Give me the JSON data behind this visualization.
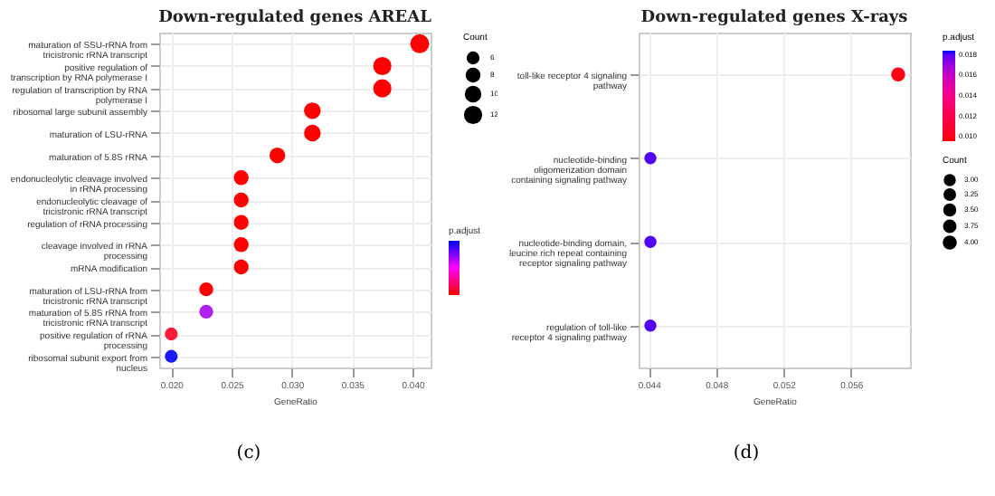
{
  "chart_data": [
    {
      "type": "scatter",
      "title": "Down-regulated genes AREAL",
      "xlabel": "GeneRatio",
      "legend_title": "Count",
      "clabel": "p.adjust",
      "orientation": "horizontal",
      "grid": true,
      "annotations": [
        "(c)"
      ],
      "categories": [
        "maturation of SSU-rRNA from tricistronic rRNA transcript",
        "positive regulation of transcription by RNA polymerase I",
        "regulation of transcription by RNA polymerase I",
        "ribosomal large subunit assembly",
        "maturation of LSU-rRNA",
        "maturation of 5.8S rRNA",
        "endonucleolytic cleavage involved in rRNA processing",
        "endonucleolytic cleavage of tricistronic rRNA transcript",
        "regulation of rRNA processing",
        "cleavage involved in rRNA processing",
        "mRNA modification",
        "maturation of LSU-rRNA from tricistronic rRNA transcript",
        "maturation of 5.8S rRNA from tricistronic rRNA transcript",
        "positive regulation of rRNA processing",
        "ribosomal subunit export from nucleus"
      ],
      "values": [
        0.0406,
        0.0375,
        0.0375,
        0.0317,
        0.0317,
        0.0288,
        0.0258,
        0.0258,
        0.0258,
        0.0258,
        0.0258,
        0.0229,
        0.0229,
        0.02,
        0.02
      ],
      "sizes": [
        13,
        12,
        12,
        10,
        10,
        9,
        8,
        8,
        8,
        8,
        8,
        7,
        7,
        6,
        6
      ],
      "size_legend": [
        6,
        8,
        10,
        12
      ],
      "colors": [
        "#ff0000",
        "#ff0000",
        "#ff0000",
        "#ff0000",
        "#ff0000",
        "#ff0000",
        "#ff0000",
        "#ff0000",
        "#ff0000",
        "#ff0000",
        "#ff0000",
        "#ff0000",
        "#b020f0",
        "#ff1a3a",
        "#1a1aff"
      ],
      "xlim": [
        0.019,
        0.0415
      ],
      "xticks": [
        {
          "value": 0.02,
          "label": "0.020"
        },
        {
          "value": 0.025,
          "label": "0.025"
        },
        {
          "value": 0.03,
          "label": "0.030"
        },
        {
          "value": 0.035,
          "label": "0.035"
        },
        {
          "value": 0.04,
          "label": "0.040"
        }
      ]
    },
    {
      "type": "scatter",
      "title": "Down-regulated genes X-rays",
      "xlabel": "GeneRatio",
      "legend_title": "Count",
      "clabel": "p.adjust",
      "orientation": "horizontal",
      "grid": true,
      "annotations": [
        "(d)"
      ],
      "categories": [
        "toll-like receptor 4 signaling pathway",
        "nucleotide-binding oligomerization domain containing signaling pathway",
        "nucleotide-binding domain, leucine rich repeat containing receptor signaling pathway",
        "regulation of toll-like receptor 4 signaling pathway"
      ],
      "values": [
        0.0588,
        0.0441,
        0.0441,
        0.0441
      ],
      "sizes": [
        4,
        3,
        3,
        3
      ],
      "size_legend": [
        {
          "value": 3,
          "label": "3.00"
        },
        {
          "value": 3.25,
          "label": "3.25"
        },
        {
          "value": 3.5,
          "label": "3.50"
        },
        {
          "value": 3.75,
          "label": "3.75"
        },
        {
          "value": 4,
          "label": "4.00"
        }
      ],
      "cvalues": [
        0.01,
        0.018,
        0.018,
        0.018
      ],
      "clim": [
        0.0096,
        0.0184
      ],
      "cticks": [
        {
          "value": 0.01,
          "label": "0.010"
        },
        {
          "value": 0.012,
          "label": "0.012"
        },
        {
          "value": 0.014,
          "label": "0.014"
        },
        {
          "value": 0.016,
          "label": "0.016"
        },
        {
          "value": 0.018,
          "label": "0.018"
        }
      ],
      "xlim": [
        0.0434,
        0.0595
      ],
      "xticks": [
        {
          "value": 0.044,
          "label": "0.044"
        },
        {
          "value": 0.048,
          "label": "0.048"
        },
        {
          "value": 0.052,
          "label": "0.052"
        },
        {
          "value": 0.056,
          "label": "0.056"
        }
      ]
    }
  ]
}
